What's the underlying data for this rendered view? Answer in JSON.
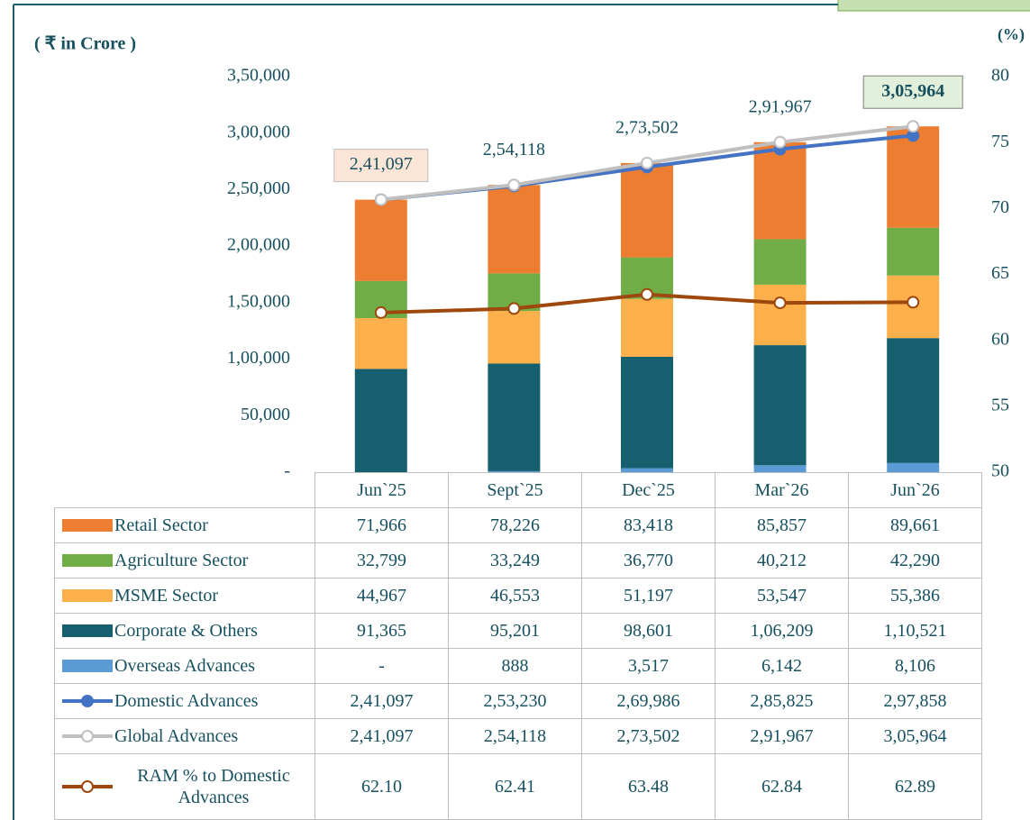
{
  "chart_data": {
    "type": "bar",
    "y_label": "( ₹ in Crore )",
    "y2_label": "(%)",
    "categories": [
      "Jun`25",
      "Sept`25",
      "Dec`25",
      "Mar`26",
      "Jun`26"
    ],
    "ylim": [
      0,
      350000
    ],
    "yticks": [
      {
        "value": 0,
        "label": "-"
      },
      {
        "value": 50000,
        "label": "50,000"
      },
      {
        "value": 100000,
        "label": "1,00,000"
      },
      {
        "value": 150000,
        "label": "1,50,000"
      },
      {
        "value": 200000,
        "label": "2,00,000"
      },
      {
        "value": 250000,
        "label": "2,50,000"
      },
      {
        "value": 300000,
        "label": "3,00,000"
      },
      {
        "value": 350000,
        "label": "3,50,000"
      }
    ],
    "y2lim": [
      50,
      80
    ],
    "y2ticks": [
      50,
      55,
      60,
      65,
      70,
      75,
      80
    ],
    "series": [
      {
        "name": "Retail  Sector",
        "type": "bar",
        "color": "#ed7d31",
        "values": [
          71966,
          78226,
          83418,
          85857,
          89661
        ],
        "value_labels": [
          "71,966",
          "78,226",
          "83,418",
          "85,857",
          "89,661"
        ]
      },
      {
        "name": "Agriculture Sector",
        "type": "bar",
        "color": "#70ad47",
        "values": [
          32799,
          33249,
          36770,
          40212,
          42290
        ],
        "value_labels": [
          "32,799",
          "33,249",
          "36,770",
          "40,212",
          "42,290"
        ]
      },
      {
        "name": "MSME Sector",
        "type": "bar",
        "color": "#fbb04c",
        "values": [
          44967,
          46553,
          51197,
          53547,
          55386
        ],
        "value_labels": [
          "44,967",
          "46,553",
          "51,197",
          "53,547",
          "55,386"
        ]
      },
      {
        "name": "Corporate & Others",
        "type": "bar",
        "color": "#155f6f",
        "values": [
          91365,
          95201,
          98601,
          106209,
          110521
        ],
        "value_labels": [
          "91,365",
          "95,201",
          "98,601",
          "1,06,209",
          "1,10,521"
        ]
      },
      {
        "name": "Overseas Advances",
        "type": "bar",
        "color": "#5b9bd5",
        "values": [
          0,
          888,
          3517,
          6142,
          8106
        ],
        "value_labels": [
          "-",
          "888",
          "3,517",
          "6,142",
          "8,106"
        ]
      },
      {
        "name": "Domestic Advances",
        "type": "line",
        "color": "#4472c4",
        "values": [
          241097,
          253230,
          269986,
          285825,
          297858
        ],
        "value_labels": [
          "2,41,097",
          "2,53,230",
          "2,69,986",
          "2,85,825",
          "2,97,858"
        ]
      },
      {
        "name": "Global Advances",
        "type": "line",
        "color": "#bfbfbf",
        "values": [
          241097,
          254118,
          273502,
          291967,
          305964
        ],
        "value_labels": [
          "2,41,097",
          "2,54,118",
          "2,73,502",
          "2,91,967",
          "3,05,964"
        ]
      },
      {
        "name": "RAM % to Domestic Advances",
        "type": "line",
        "axis": "y2",
        "color": "#9e480e",
        "values": [
          62.1,
          62.41,
          63.48,
          62.84,
          62.89
        ],
        "value_labels": [
          "62.10",
          "62.41",
          "63.48",
          "62.84",
          "62.89"
        ]
      }
    ]
  }
}
